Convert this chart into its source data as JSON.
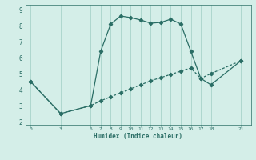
{
  "xlabel": "Humidex (Indice chaleur)",
  "line1_x": [
    0,
    3,
    6,
    7,
    8,
    9,
    10,
    11,
    12,
    13,
    14,
    15,
    16,
    17,
    18,
    21
  ],
  "line1_y": [
    4.5,
    2.5,
    3.0,
    6.4,
    8.1,
    8.6,
    8.5,
    8.35,
    8.15,
    8.2,
    8.4,
    8.1,
    6.4,
    4.7,
    4.3,
    5.8
  ],
  "line2_x": [
    0,
    3,
    6,
    7,
    8,
    9,
    10,
    11,
    12,
    13,
    14,
    15,
    16,
    17,
    18,
    21
  ],
  "line2_y": [
    4.5,
    2.5,
    3.0,
    3.3,
    3.55,
    3.8,
    4.05,
    4.3,
    4.55,
    4.75,
    4.95,
    5.15,
    5.35,
    4.7,
    5.0,
    5.8
  ],
  "color": "#2a6e65",
  "bg_color": "#d4eee8",
  "grid_color": "#9ecdc4",
  "xticks": [
    0,
    3,
    6,
    7,
    8,
    9,
    10,
    11,
    12,
    13,
    14,
    15,
    16,
    17,
    18,
    21
  ],
  "yticks": [
    2,
    3,
    4,
    5,
    6,
    7,
    8,
    9
  ],
  "xlim": [
    -0.5,
    22
  ],
  "ylim": [
    1.8,
    9.3
  ]
}
